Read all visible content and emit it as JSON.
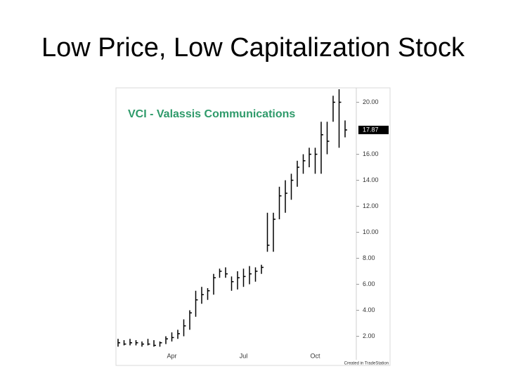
{
  "slide_title": "Low Price, Low Capitalization Stock",
  "chart_data": {
    "type": "ohlc",
    "title": "VCI - Valassis Communications",
    "title_color": "#2e9a6a",
    "color": "#000000",
    "categories": [
      null,
      null,
      null,
      null,
      null,
      null,
      null,
      null,
      null,
      "Apr",
      null,
      null,
      null,
      null,
      null,
      null,
      null,
      null,
      null,
      null,
      null,
      "Jul",
      null,
      null,
      null,
      null,
      null,
      null,
      null,
      null,
      null,
      null,
      null,
      "Oct",
      null,
      null,
      null,
      null,
      null
    ],
    "high": [
      1.8,
      1.7,
      1.8,
      1.7,
      1.6,
      1.8,
      1.7,
      1.6,
      2.0,
      2.3,
      2.5,
      3.3,
      4.0,
      5.5,
      5.8,
      5.7,
      6.8,
      7.2,
      7.3,
      6.6,
      7.0,
      7.2,
      7.4,
      7.3,
      7.5,
      11.5,
      11.5,
      13.5,
      14.0,
      14.5,
      15.5,
      16.0,
      16.5,
      16.5,
      18.5,
      18.5,
      20.5,
      21.0,
      18.6
    ],
    "low": [
      1.2,
      1.3,
      1.3,
      1.3,
      1.2,
      1.3,
      1.2,
      1.2,
      1.4,
      1.6,
      1.8,
      2.0,
      2.5,
      3.5,
      4.5,
      4.8,
      5.2,
      6.5,
      6.5,
      5.5,
      5.6,
      5.8,
      6.0,
      6.2,
      6.8,
      8.5,
      8.5,
      11.0,
      11.5,
      12.5,
      13.5,
      14.5,
      15.0,
      14.5,
      14.5,
      16.0,
      18.5,
      16.5,
      17.3
    ],
    "close": [
      1.5,
      1.4,
      1.5,
      1.5,
      1.4,
      1.4,
      1.3,
      1.5,
      1.8,
      1.9,
      2.2,
      2.8,
      3.8,
      4.8,
      5.2,
      5.5,
      6.5,
      7.0,
      6.8,
      6.2,
      6.5,
      6.6,
      6.8,
      7.0,
      7.3,
      9.0,
      11.0,
      12.8,
      13.0,
      14.0,
      15.0,
      15.5,
      16.0,
      16.0,
      17.5,
      17.0,
      20.0,
      20.0,
      17.87
    ],
    "last_price": 17.87,
    "ylim": [
      1,
      21
    ],
    "yticks": [
      {
        "value": 2,
        "label": "2.00"
      },
      {
        "value": 4,
        "label": "4.00"
      },
      {
        "value": 6,
        "label": "6.00"
      },
      {
        "value": 8,
        "label": "8.00"
      },
      {
        "value": 10,
        "label": "10.00"
      },
      {
        "value": 12,
        "label": "12.00"
      },
      {
        "value": 14,
        "label": "14.00"
      },
      {
        "value": 16,
        "label": "16.00"
      },
      {
        "value": 20,
        "label": "20.00"
      }
    ],
    "credit": "Created in TradeStation"
  }
}
